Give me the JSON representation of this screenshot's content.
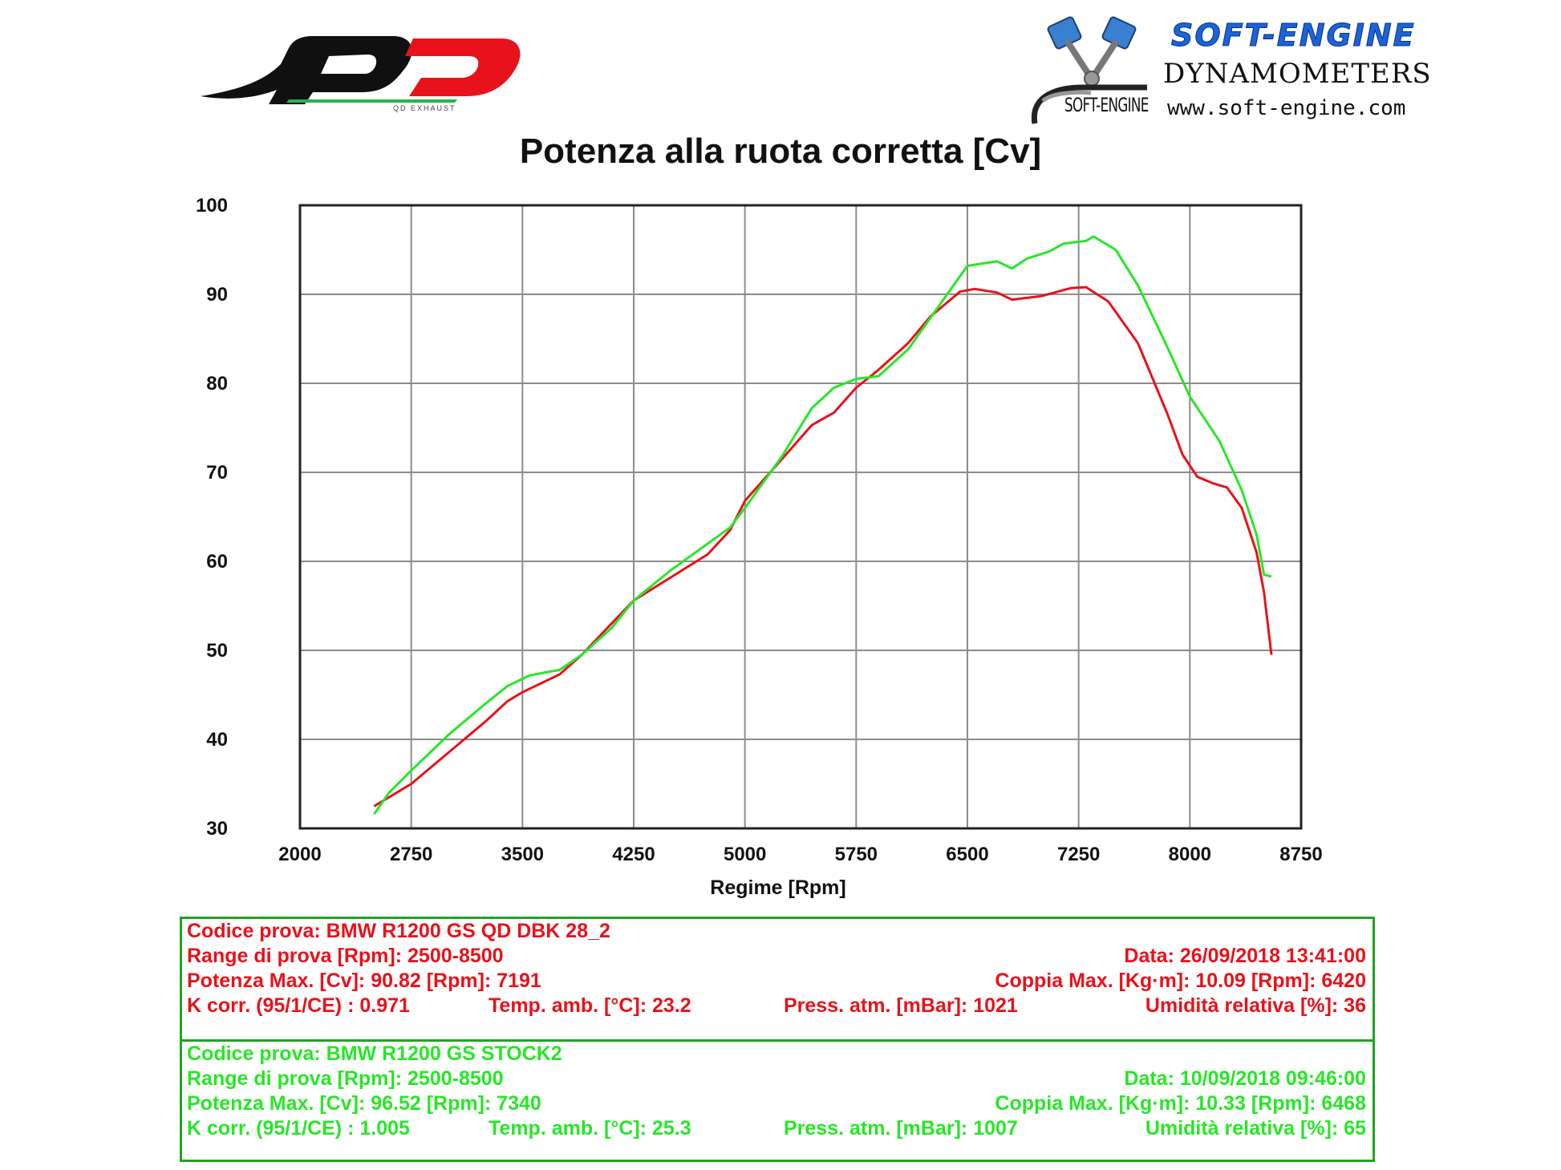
{
  "header": {
    "brand_name": "SOFT-ENGINE",
    "brand_subtitle": "DYNAMOMETERS",
    "brand_url": "www.soft-engine.com",
    "brand_small": "SOFT-ENGINE",
    "qd_logo_text": "QD EXHAUST"
  },
  "colors": {
    "series_red": "#e8121b",
    "series_green": "#28e628",
    "grid": "#8c8c8c",
    "box_border": "#1fa51f",
    "brand_blue": "#1b63d8"
  },
  "chart_data": {
    "type": "line",
    "title": "Potenza alla ruota corretta [Cv]",
    "xlabel": "Regime [Rpm]",
    "ylabel": "",
    "xlim": [
      2000,
      8750
    ],
    "ylim": [
      30,
      100
    ],
    "x_ticks": [
      "2000",
      "2750",
      "3500",
      "4250",
      "5000",
      "5750",
      "6500",
      "7250",
      "8000",
      "8750"
    ],
    "y_ticks": [
      "30",
      "40",
      "50",
      "60",
      "70",
      "80",
      "90",
      "100"
    ],
    "grid": true,
    "series": [
      {
        "color": "#e8121b",
        "points": [
          [
            2500,
            32.5
          ],
          [
            2750,
            35
          ],
          [
            3000,
            38.5
          ],
          [
            3250,
            42
          ],
          [
            3400,
            44.3
          ],
          [
            3500,
            45.3
          ],
          [
            3750,
            47.3
          ],
          [
            3900,
            49.5
          ],
          [
            4100,
            53
          ],
          [
            4250,
            55.6
          ],
          [
            4500,
            58.2
          ],
          [
            4750,
            60.8
          ],
          [
            4900,
            63.5
          ],
          [
            5000,
            66.8
          ],
          [
            5250,
            71.5
          ],
          [
            5450,
            75.3
          ],
          [
            5600,
            76.7
          ],
          [
            5750,
            79.5
          ],
          [
            5900,
            81.5
          ],
          [
            6100,
            84.5
          ],
          [
            6250,
            87.5
          ],
          [
            6450,
            90.3
          ],
          [
            6550,
            90.6
          ],
          [
            6700,
            90.2
          ],
          [
            6800,
            89.4
          ],
          [
            7000,
            89.8
          ],
          [
            7200,
            90.7
          ],
          [
            7300,
            90.8
          ],
          [
            7450,
            89.2
          ],
          [
            7650,
            84.5
          ],
          [
            7850,
            76.5
          ],
          [
            7950,
            72
          ],
          [
            8050,
            69.5
          ],
          [
            8150,
            68.8
          ],
          [
            8250,
            68.3
          ],
          [
            8350,
            66
          ],
          [
            8450,
            61
          ],
          [
            8500,
            56.5
          ],
          [
            8550,
            49.5
          ]
        ]
      },
      {
        "color": "#28e628",
        "points": [
          [
            2500,
            31.6
          ],
          [
            2550,
            32.8
          ],
          [
            2600,
            34
          ],
          [
            2750,
            36.5
          ],
          [
            3000,
            40.5
          ],
          [
            3250,
            44
          ],
          [
            3400,
            46
          ],
          [
            3550,
            47.2
          ],
          [
            3750,
            47.8
          ],
          [
            3900,
            49.5
          ],
          [
            4100,
            52.5
          ],
          [
            4250,
            55.6
          ],
          [
            4500,
            59
          ],
          [
            4750,
            62
          ],
          [
            4900,
            63.8
          ],
          [
            5000,
            66
          ],
          [
            5250,
            71.8
          ],
          [
            5450,
            77.2
          ],
          [
            5600,
            79.5
          ],
          [
            5750,
            80.5
          ],
          [
            5900,
            80.8
          ],
          [
            6100,
            83.8
          ],
          [
            6300,
            88.5
          ],
          [
            6500,
            93.2
          ],
          [
            6700,
            93.7
          ],
          [
            6800,
            92.9
          ],
          [
            6900,
            94
          ],
          [
            7050,
            94.8
          ],
          [
            7150,
            95.7
          ],
          [
            7300,
            96
          ],
          [
            7350,
            96.5
          ],
          [
            7500,
            95
          ],
          [
            7650,
            91
          ],
          [
            7850,
            84
          ],
          [
            8000,
            78.5
          ],
          [
            8200,
            73.5
          ],
          [
            8350,
            68
          ],
          [
            8450,
            63
          ],
          [
            8500,
            58.5
          ],
          [
            8550,
            58.3
          ]
        ]
      }
    ]
  },
  "tests": [
    {
      "color": "#e8121b",
      "codice": "Codice prova: BMW R1200 GS QD DBK 28_2",
      "range": "Range di prova [Rpm]: 2500-8500",
      "data": "Data: 26/09/2018   13:41:00",
      "potenza": "Potenza Max. [Cv]: 90.82   [Rpm]: 7191",
      "coppia": "Coppia Max. [Kg·m]: 10.09   [Rpm]: 6420",
      "kcorr": "K corr. (95/1/CE) : 0.971",
      "temp": "Temp. amb. [°C]: 23.2",
      "press": "Press. atm. [mBar]: 1021",
      "umidita": "Umidità relativa [%]: 36"
    },
    {
      "color": "#28e628",
      "codice": "Codice prova: BMW R1200 GS STOCK2",
      "range": "Range di prova [Rpm]: 2500-8500",
      "data": "Data: 10/09/2018   09:46:00",
      "potenza": "Potenza Max. [Cv]: 96.52   [Rpm]: 7340",
      "coppia": "Coppia Max. [Kg·m]: 10.33   [Rpm]: 6468",
      "kcorr": "K corr. (95/1/CE) : 1.005",
      "temp": "Temp. amb. [°C]: 25.3",
      "press": "Press. atm. [mBar]: 1007",
      "umidita": "Umidità relativa [%]: 65"
    }
  ]
}
